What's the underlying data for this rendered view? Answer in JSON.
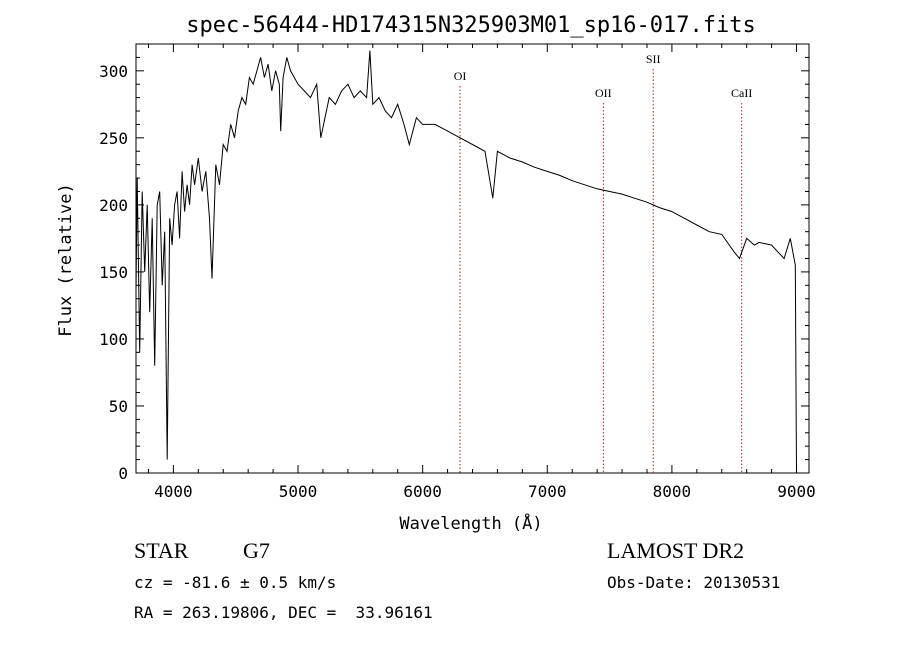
{
  "chart_data": {
    "type": "line",
    "title": "spec-56444-HD174315N325903M01_sp16-017.fits",
    "xlabel": "Wavelength (Å)",
    "ylabel": "Flux (relative)",
    "xlim": [
      3700,
      9100
    ],
    "ylim": [
      0,
      320
    ],
    "x_ticks": [
      4000,
      5000,
      6000,
      7000,
      8000,
      9000
    ],
    "x_tick_labels": [
      "4000",
      "5000",
      "6000",
      "7000",
      "8000",
      "9000"
    ],
    "y_ticks": [
      0,
      50,
      100,
      150,
      200,
      250,
      300
    ],
    "y_tick_labels": [
      "0",
      "50",
      "100",
      "150",
      "200",
      "250",
      "300"
    ],
    "grid": false,
    "series": [
      {
        "x": [
          3700,
          3710,
          3730,
          3750,
          3770,
          3790,
          3810,
          3830,
          3850,
          3870,
          3890,
          3910,
          3930,
          3950,
          3970,
          3990,
          4010,
          4030,
          4050,
          4070,
          4090,
          4110,
          4130,
          4150,
          4170,
          4200,
          4230,
          4260,
          4290,
          4310,
          4340,
          4370,
          4400,
          4430,
          4460,
          4490,
          4520,
          4550,
          4580,
          4610,
          4640,
          4670,
          4700,
          4730,
          4760,
          4790,
          4820,
          4850,
          4861,
          4880,
          4910,
          4940,
          4970,
          5000,
          5050,
          5100,
          5150,
          5183,
          5250,
          5300,
          5350,
          5400,
          5450,
          5500,
          5550,
          5577,
          5600,
          5650,
          5700,
          5750,
          5800,
          5850,
          5893,
          5950,
          6000,
          6100,
          6200,
          6300,
          6400,
          6500,
          6563,
          6600,
          6700,
          6800,
          6900,
          7000,
          7100,
          7200,
          7300,
          7400,
          7500,
          7600,
          7700,
          7800,
          7900,
          8000,
          8100,
          8200,
          8300,
          8400,
          8498,
          8542,
          8600,
          8662,
          8700,
          8800,
          8850,
          8900,
          8950,
          8990,
          9000
        ],
        "y": [
          135,
          220,
          90,
          210,
          150,
          200,
          120,
          190,
          80,
          200,
          210,
          140,
          180,
          10,
          190,
          170,
          200,
          210,
          175,
          225,
          195,
          215,
          200,
          230,
          215,
          235,
          210,
          225,
          190,
          145,
          230,
          215,
          245,
          240,
          260,
          250,
          270,
          280,
          275,
          295,
          290,
          300,
          310,
          295,
          305,
          285,
          300,
          290,
          255,
          295,
          310,
          300,
          295,
          290,
          285,
          280,
          290,
          250,
          280,
          275,
          285,
          290,
          280,
          285,
          280,
          315,
          275,
          280,
          270,
          265,
          275,
          260,
          245,
          265,
          260,
          260,
          255,
          250,
          245,
          240,
          205,
          240,
          235,
          232,
          228,
          225,
          222,
          218,
          215,
          212,
          210,
          208,
          205,
          202,
          198,
          195,
          190,
          185,
          180,
          178,
          165,
          160,
          175,
          170,
          172,
          170,
          165,
          160,
          175,
          155,
          0
        ]
      }
    ],
    "line_markers": [
      {
        "label": "OI",
        "x": 6300
      },
      {
        "label": "OII",
        "x": 7450
      },
      {
        "label": "SII",
        "x": 7850
      },
      {
        "label": "CaII",
        "x": 8560
      }
    ]
  },
  "info": {
    "object_type": "STAR",
    "subclass": "G7",
    "redshift_line": "cz = -81.6 ± 0.5 km/s",
    "coords_line": "RA = 263.19806, DEC =  33.96161",
    "survey": "LAMOST DR2",
    "obs_date": "Obs-Date: 20130531"
  },
  "colors": {
    "spectrum": "#000000",
    "marker_line": "#b22222",
    "axes": "#000000"
  }
}
